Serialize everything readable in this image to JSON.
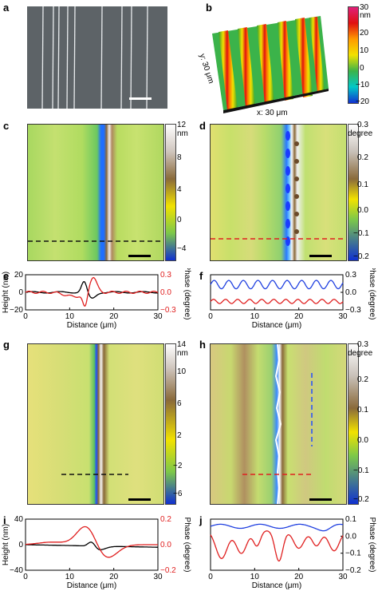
{
  "panels": {
    "a": {
      "label": "a"
    },
    "b": {
      "label": "b",
      "colorbar": {
        "ticks": [
          "30",
          "20",
          "10",
          "0",
          "−10",
          "−20"
        ],
        "unit": "nm"
      },
      "axis_x": "x: 30 μm",
      "axis_y": "y: 30 μm"
    },
    "c": {
      "label": "c",
      "colorbar": {
        "ticks": [
          "12",
          "8",
          "4",
          "0",
          "−4"
        ],
        "unit": "nm"
      }
    },
    "d": {
      "label": "d",
      "colorbar": {
        "ticks": [
          "0.3",
          "0.2",
          "0.1",
          "0.0",
          "−0.1",
          "−0.2"
        ],
        "unit": "degree"
      }
    },
    "e": {
      "label": "e"
    },
    "f": {
      "label": "f"
    },
    "g": {
      "label": "g",
      "colorbar": {
        "ticks": [
          "14",
          "10",
          "6",
          "2",
          "−2",
          "−6"
        ],
        "unit": "nm"
      }
    },
    "h": {
      "label": "h",
      "colorbar": {
        "ticks": [
          "0.3",
          "0.2",
          "0.1",
          "0.0",
          "−0.1",
          "−0.2"
        ],
        "unit": "degree"
      }
    },
    "i": {
      "label": "i"
    },
    "j": {
      "label": "j"
    }
  },
  "chart_data": [
    {
      "id": "e",
      "type": "line",
      "xlabel": "Distance (μm)",
      "ylabel": "Height (nm)",
      "ylabel2": "Phase (degree)",
      "xlim": [
        0,
        30
      ],
      "ylim": [
        -20,
        20
      ],
      "y2lim": [
        -0.3,
        0.3
      ],
      "xticks": [
        "0",
        "10",
        "20",
        "30"
      ],
      "yticks": [
        "−20",
        "0",
        "20"
      ],
      "y2ticks": [
        "−0.3",
        "0.0",
        "0.3"
      ]
    },
    {
      "id": "f",
      "type": "line",
      "xlabel": "Distance (μm)",
      "ylabel2": "Phase (degree)",
      "xlim": [
        0,
        30
      ],
      "y2lim": [
        -0.3,
        0.3
      ],
      "xticks": [
        "0",
        "10",
        "20",
        "30"
      ],
      "y2ticks": [
        "−0.3",
        "0.0",
        "0.3"
      ]
    },
    {
      "id": "i",
      "type": "line",
      "xlabel": "Distance (μm)",
      "ylabel": "Height (nm)",
      "ylabel2": "Phase (degree)",
      "xlim": [
        0,
        30
      ],
      "ylim": [
        -40,
        40
      ],
      "y2lim": [
        -0.2,
        0.2
      ],
      "xticks": [
        "0",
        "10",
        "20",
        "30"
      ],
      "yticks": [
        "−40",
        "0",
        "40"
      ],
      "y2ticks": [
        "−0.2",
        "0.0",
        "0.2"
      ]
    },
    {
      "id": "j",
      "type": "line",
      "xlabel": "Distance (μm)",
      "ylabel2": "Phase (degree)",
      "xlim": [
        0,
        30
      ],
      "y2lim": [
        -0.2,
        0.1
      ],
      "xticks": [
        "0",
        "10",
        "20",
        "30"
      ],
      "y2ticks": [
        "−0.2",
        "−0.1",
        "0.0",
        "0.1"
      ]
    }
  ]
}
